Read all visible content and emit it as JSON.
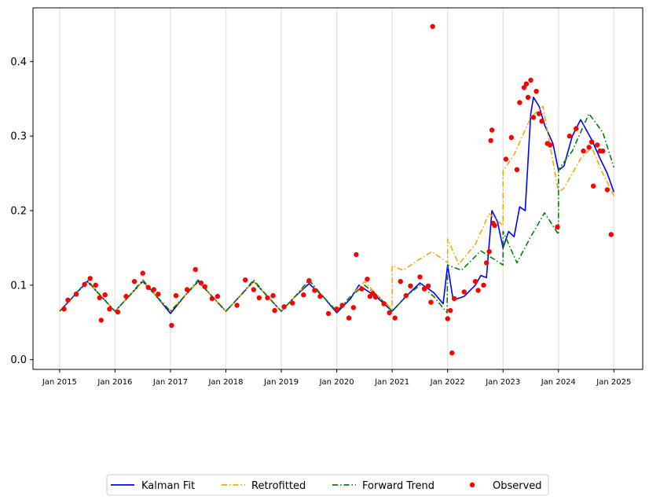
{
  "chart_data": {
    "type": "line",
    "title": "",
    "xlabel": "",
    "ylabel": "",
    "xlim": [
      2014.52,
      2025.52
    ],
    "ylim": [
      -0.013,
      0.472
    ],
    "x_ticks": [
      2015,
      2016,
      2017,
      2018,
      2019,
      2020,
      2021,
      2022,
      2023,
      2024,
      2025
    ],
    "x_tick_labels": [
      "Jan 2015",
      "Jan 2016",
      "Jan 2017",
      "Jan 2018",
      "Jan 2019",
      "Jan 2020",
      "Jan 2021",
      "Jan 2022",
      "Jan 2023",
      "Jan 2024",
      "Jan 2025"
    ],
    "y_ticks": [
      0.0,
      0.1,
      0.2,
      0.3,
      0.4
    ],
    "y_tick_labels": [
      "0.0",
      "0.1",
      "0.2",
      "0.3",
      "0.4"
    ],
    "grid": "vertical lines at year ticks",
    "legend_position": "bottom-center",
    "series": [
      {
        "name": "Kalman Fit",
        "color": "#0000ff",
        "style": "solid",
        "points": [
          [
            2015.0,
            0.065
          ],
          [
            2015.25,
            0.085
          ],
          [
            2015.5,
            0.105
          ],
          [
            2015.75,
            0.085
          ],
          [
            2016.0,
            0.065
          ],
          [
            2016.25,
            0.085
          ],
          [
            2016.5,
            0.105
          ],
          [
            2016.75,
            0.085
          ],
          [
            2017.0,
            0.062
          ],
          [
            2017.25,
            0.085
          ],
          [
            2017.5,
            0.105
          ],
          [
            2017.75,
            0.085
          ],
          [
            2018.0,
            0.065
          ],
          [
            2018.25,
            0.085
          ],
          [
            2018.5,
            0.105
          ],
          [
            2018.75,
            0.085
          ],
          [
            2019.0,
            0.065
          ],
          [
            2019.25,
            0.085
          ],
          [
            2019.5,
            0.102
          ],
          [
            2019.75,
            0.085
          ],
          [
            2020.0,
            0.063
          ],
          [
            2020.25,
            0.082
          ],
          [
            2020.4,
            0.1
          ],
          [
            2020.6,
            0.09
          ],
          [
            2020.75,
            0.082
          ],
          [
            2021.0,
            0.065
          ],
          [
            2021.25,
            0.085
          ],
          [
            2021.5,
            0.103
          ],
          [
            2021.75,
            0.09
          ],
          [
            2021.92,
            0.075
          ],
          [
            2022.0,
            0.127
          ],
          [
            2022.1,
            0.08
          ],
          [
            2022.3,
            0.085
          ],
          [
            2022.5,
            0.1
          ],
          [
            2022.6,
            0.113
          ],
          [
            2022.7,
            0.11
          ],
          [
            2022.8,
            0.2
          ],
          [
            2022.9,
            0.185
          ],
          [
            2023.0,
            0.15
          ],
          [
            2023.1,
            0.172
          ],
          [
            2023.2,
            0.165
          ],
          [
            2023.3,
            0.205
          ],
          [
            2023.4,
            0.2
          ],
          [
            2023.5,
            0.33
          ],
          [
            2023.55,
            0.352
          ],
          [
            2023.65,
            0.34
          ],
          [
            2023.75,
            0.315
          ],
          [
            2023.9,
            0.29
          ],
          [
            2024.0,
            0.254
          ],
          [
            2024.1,
            0.26
          ],
          [
            2024.25,
            0.3
          ],
          [
            2024.4,
            0.322
          ],
          [
            2024.6,
            0.295
          ],
          [
            2024.75,
            0.27
          ],
          [
            2024.88,
            0.25
          ],
          [
            2025.0,
            0.225
          ]
        ]
      },
      {
        "name": "Retrofitted",
        "color": "#ffa500",
        "style": "dash-dot",
        "points": [
          [
            2015.0,
            0.065
          ],
          [
            2015.25,
            0.085
          ],
          [
            2015.5,
            0.105
          ],
          [
            2015.75,
            0.085
          ],
          [
            2016.0,
            0.065
          ],
          [
            2016.25,
            0.085
          ],
          [
            2016.5,
            0.105
          ],
          [
            2016.75,
            0.085
          ],
          [
            2017.0,
            0.065
          ],
          [
            2017.25,
            0.085
          ],
          [
            2017.5,
            0.105
          ],
          [
            2017.75,
            0.085
          ],
          [
            2018.0,
            0.065
          ],
          [
            2018.25,
            0.085
          ],
          [
            2018.5,
            0.105
          ],
          [
            2018.75,
            0.085
          ],
          [
            2019.0,
            0.065
          ],
          [
            2019.25,
            0.085
          ],
          [
            2019.5,
            0.105
          ],
          [
            2019.75,
            0.085
          ],
          [
            2020.0,
            0.065
          ],
          [
            2020.25,
            0.085
          ],
          [
            2020.5,
            0.105
          ],
          [
            2020.75,
            0.085
          ],
          [
            2021.0,
            0.068
          ],
          [
            2021.0,
            0.126
          ],
          [
            2021.2,
            0.12
          ],
          [
            2021.5,
            0.135
          ],
          [
            2021.72,
            0.145
          ],
          [
            2022.0,
            0.13
          ],
          [
            2022.0,
            0.162
          ],
          [
            2022.2,
            0.128
          ],
          [
            2022.5,
            0.155
          ],
          [
            2022.75,
            0.196
          ],
          [
            2023.0,
            0.18
          ],
          [
            2023.0,
            0.253
          ],
          [
            2023.2,
            0.275
          ],
          [
            2023.5,
            0.325
          ],
          [
            2023.72,
            0.34
          ],
          [
            2024.0,
            0.225
          ],
          [
            2024.1,
            0.23
          ],
          [
            2024.4,
            0.27
          ],
          [
            2024.6,
            0.285
          ],
          [
            2024.8,
            0.25
          ],
          [
            2025.0,
            0.22
          ]
        ]
      },
      {
        "name": "Forward Trend",
        "color": "#008000",
        "style": "dash-dot",
        "points": [
          [
            2015.0,
            0.065
          ],
          [
            2015.25,
            0.085
          ],
          [
            2015.5,
            0.107
          ],
          [
            2015.75,
            0.085
          ],
          [
            2016.0,
            0.065
          ],
          [
            2016.25,
            0.085
          ],
          [
            2016.5,
            0.107
          ],
          [
            2016.75,
            0.085
          ],
          [
            2017.0,
            0.065
          ],
          [
            2017.25,
            0.085
          ],
          [
            2017.5,
            0.107
          ],
          [
            2017.75,
            0.085
          ],
          [
            2018.0,
            0.065
          ],
          [
            2018.25,
            0.085
          ],
          [
            2018.5,
            0.107
          ],
          [
            2018.75,
            0.085
          ],
          [
            2019.0,
            0.065
          ],
          [
            2019.25,
            0.085
          ],
          [
            2019.5,
            0.107
          ],
          [
            2019.75,
            0.085
          ],
          [
            2020.0,
            0.065
          ],
          [
            2020.25,
            0.085
          ],
          [
            2020.5,
            0.1
          ],
          [
            2020.75,
            0.085
          ],
          [
            2021.0,
            0.065
          ],
          [
            2021.25,
            0.085
          ],
          [
            2021.5,
            0.1
          ],
          [
            2021.75,
            0.085
          ],
          [
            2021.99,
            0.063
          ],
          [
            2022.0,
            0.127
          ],
          [
            2022.25,
            0.12
          ],
          [
            2022.6,
            0.146
          ],
          [
            2023.0,
            0.127
          ],
          [
            2023.0,
            0.172
          ],
          [
            2023.25,
            0.13
          ],
          [
            2023.5,
            0.165
          ],
          [
            2023.75,
            0.197
          ],
          [
            2024.0,
            0.168
          ],
          [
            2024.0,
            0.255
          ],
          [
            2024.25,
            0.28
          ],
          [
            2024.55,
            0.33
          ],
          [
            2024.8,
            0.305
          ],
          [
            2025.0,
            0.258
          ]
        ]
      },
      {
        "name": "Observed",
        "color": "#ff0000",
        "style": "markers",
        "points": [
          [
            2015.08,
            0.068
          ],
          [
            2015.15,
            0.08
          ],
          [
            2015.3,
            0.088
          ],
          [
            2015.45,
            0.101
          ],
          [
            2015.55,
            0.109
          ],
          [
            2015.65,
            0.1
          ],
          [
            2015.72,
            0.083
          ],
          [
            2015.75,
            0.053
          ],
          [
            2015.82,
            0.087
          ],
          [
            2015.9,
            0.068
          ],
          [
            2016.05,
            0.064
          ],
          [
            2016.2,
            0.085
          ],
          [
            2016.35,
            0.105
          ],
          [
            2016.5,
            0.116
          ],
          [
            2016.6,
            0.097
          ],
          [
            2016.7,
            0.094
          ],
          [
            2016.78,
            0.088
          ],
          [
            2017.02,
            0.046
          ],
          [
            2017.1,
            0.086
          ],
          [
            2017.3,
            0.094
          ],
          [
            2017.45,
            0.121
          ],
          [
            2017.55,
            0.103
          ],
          [
            2017.62,
            0.098
          ],
          [
            2017.75,
            0.082
          ],
          [
            2017.85,
            0.085
          ],
          [
            2018.2,
            0.073
          ],
          [
            2018.35,
            0.107
          ],
          [
            2018.5,
            0.094
          ],
          [
            2018.6,
            0.083
          ],
          [
            2018.75,
            0.083
          ],
          [
            2018.85,
            0.086
          ],
          [
            2018.88,
            0.066
          ],
          [
            2019.05,
            0.071
          ],
          [
            2019.2,
            0.076
          ],
          [
            2019.4,
            0.087
          ],
          [
            2019.5,
            0.106
          ],
          [
            2019.6,
            0.093
          ],
          [
            2019.7,
            0.085
          ],
          [
            2019.85,
            0.062
          ],
          [
            2020.0,
            0.068
          ],
          [
            2020.1,
            0.073
          ],
          [
            2020.22,
            0.056
          ],
          [
            2020.3,
            0.07
          ],
          [
            2020.35,
            0.141
          ],
          [
            2020.45,
            0.095
          ],
          [
            2020.55,
            0.108
          ],
          [
            2020.6,
            0.085
          ],
          [
            2020.65,
            0.089
          ],
          [
            2020.7,
            0.084
          ],
          [
            2020.85,
            0.075
          ],
          [
            2020.95,
            0.063
          ],
          [
            2021.05,
            0.056
          ],
          [
            2021.15,
            0.105
          ],
          [
            2021.25,
            0.086
          ],
          [
            2021.33,
            0.099
          ],
          [
            2021.5,
            0.111
          ],
          [
            2021.58,
            0.095
          ],
          [
            2021.65,
            0.099
          ],
          [
            2021.7,
            0.077
          ],
          [
            2021.73,
            0.447
          ],
          [
            2022.0,
            0.055
          ],
          [
            2022.05,
            0.066
          ],
          [
            2022.08,
            0.009
          ],
          [
            2022.12,
            0.082
          ],
          [
            2022.3,
            0.091
          ],
          [
            2022.5,
            0.105
          ],
          [
            2022.55,
            0.093
          ],
          [
            2022.65,
            0.1
          ],
          [
            2022.7,
            0.13
          ],
          [
            2022.75,
            0.145
          ],
          [
            2022.78,
            0.294
          ],
          [
            2022.8,
            0.308
          ],
          [
            2022.82,
            0.183
          ],
          [
            2022.85,
            0.18
          ],
          [
            2023.05,
            0.269
          ],
          [
            2023.15,
            0.298
          ],
          [
            2023.25,
            0.255
          ],
          [
            2023.3,
            0.345
          ],
          [
            2023.38,
            0.365
          ],
          [
            2023.42,
            0.37
          ],
          [
            2023.45,
            0.352
          ],
          [
            2023.5,
            0.375
          ],
          [
            2023.55,
            0.325
          ],
          [
            2023.6,
            0.36
          ],
          [
            2023.65,
            0.33
          ],
          [
            2023.7,
            0.32
          ],
          [
            2023.8,
            0.29
          ],
          [
            2023.85,
            0.288
          ],
          [
            2023.98,
            0.178
          ],
          [
            2024.2,
            0.3
          ],
          [
            2024.32,
            0.31
          ],
          [
            2024.45,
            0.28
          ],
          [
            2024.55,
            0.285
          ],
          [
            2024.6,
            0.292
          ],
          [
            2024.63,
            0.233
          ],
          [
            2024.7,
            0.288
          ],
          [
            2024.75,
            0.28
          ],
          [
            2024.8,
            0.28
          ],
          [
            2024.88,
            0.228
          ],
          [
            2024.95,
            0.168
          ]
        ]
      }
    ]
  },
  "legend": {
    "items": [
      {
        "label": "Kalman Fit",
        "color": "#0000ff",
        "style": "solid"
      },
      {
        "label": "Retrofitted",
        "color": "#ffa500",
        "style": "dash-dot"
      },
      {
        "label": "Forward Trend",
        "color": "#008000",
        "style": "dash-dot"
      },
      {
        "label": "Observed",
        "color": "#ff0000",
        "style": "markers"
      }
    ]
  }
}
